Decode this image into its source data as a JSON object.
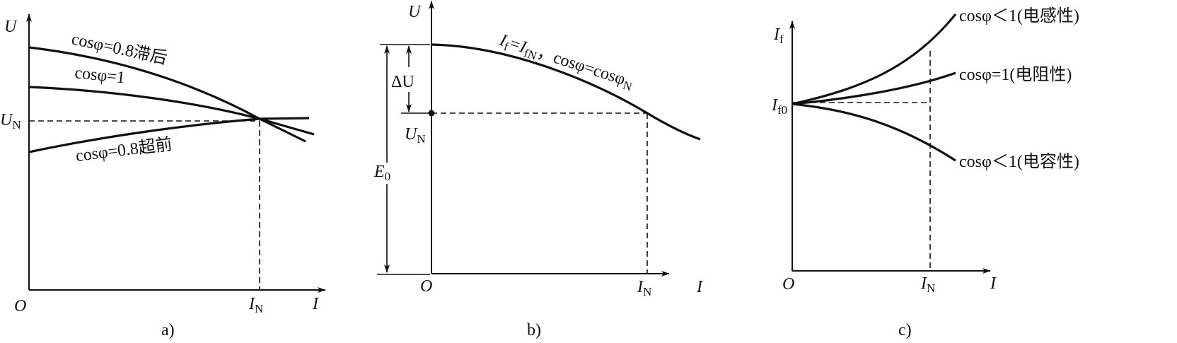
{
  "panels": {
    "a": {
      "caption": "a)",
      "y_axis": "U",
      "x_axis": "I",
      "origin": "O",
      "un_label": "U",
      "un_sub": "N",
      "in_label": "I",
      "in_sub": "N",
      "curves": [
        {
          "label": "cosφ=0.8滞后"
        },
        {
          "label": "cosφ=1"
        },
        {
          "label": "cosφ=0.8超前"
        }
      ]
    },
    "b": {
      "caption": "b)",
      "y_axis": "U",
      "x_axis": "I",
      "origin": "O",
      "un_label": "U",
      "un_sub": "N",
      "in_label": "I",
      "in_sub": "N",
      "delta_u": "ΔU",
      "e0_label": "E",
      "e0_sub": "0",
      "curve_label_if": "I",
      "curve_label_if_sub": "f",
      "curve_label_eq": "=I",
      "curve_label_ifn_sub": "fN",
      "curve_label_cos": "，cosφ=cosφ",
      "curve_label_cos_sub": "N"
    },
    "c": {
      "caption": "c)",
      "y_axis": "I",
      "y_axis_sub": "f",
      "x_axis": "I",
      "origin": "O",
      "if0_label": "I",
      "if0_sub": "f0",
      "in_label": "I",
      "in_sub": "N",
      "curves": [
        {
          "label": "cosφ＜1(电感性)"
        },
        {
          "label": "cosφ=1(电阻性)"
        },
        {
          "label": "cosφ＜1(电容性)"
        }
      ]
    }
  }
}
